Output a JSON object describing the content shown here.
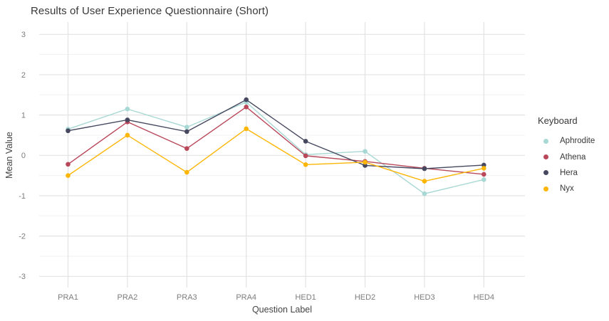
{
  "chart_data": {
    "type": "line",
    "title": "Results of User Experience Questionnaire (Short)",
    "xlabel": "Question Label",
    "ylabel": "Mean Value",
    "legend_title": "Keyboard",
    "legend_position": "right",
    "categories": [
      "PRA1",
      "PRA2",
      "PRA3",
      "PRA4",
      "HED1",
      "HED2",
      "HED3",
      "HED4"
    ],
    "series": [
      {
        "name": "Aphrodite",
        "color": "#a8d8d4",
        "values": [
          0.65,
          1.15,
          0.7,
          1.32,
          0.02,
          0.1,
          -0.95,
          -0.6
        ]
      },
      {
        "name": "Athena",
        "color": "#b8485a",
        "values": [
          -0.22,
          0.83,
          0.17,
          1.2,
          -0.01,
          -0.15,
          -0.32,
          -0.47
        ]
      },
      {
        "name": "Hera",
        "color": "#46485f",
        "values": [
          0.61,
          0.88,
          0.59,
          1.38,
          0.35,
          -0.25,
          -0.33,
          -0.24
        ]
      },
      {
        "name": "Nyx",
        "color": "#fcb608",
        "values": [
          -0.5,
          0.5,
          -0.42,
          0.66,
          -0.23,
          -0.17,
          -0.64,
          -0.32
        ]
      }
    ],
    "ylim": [
      -3,
      3
    ],
    "yticks": [
      3,
      2,
      1,
      0,
      -1,
      -2,
      -3
    ],
    "grid": {
      "major_color": "#e3e3e3",
      "minor_color": "#f1f1f1",
      "minor_step": 0.5,
      "background": "#ffffff"
    },
    "tick_label_color": "#7c7c7c"
  }
}
